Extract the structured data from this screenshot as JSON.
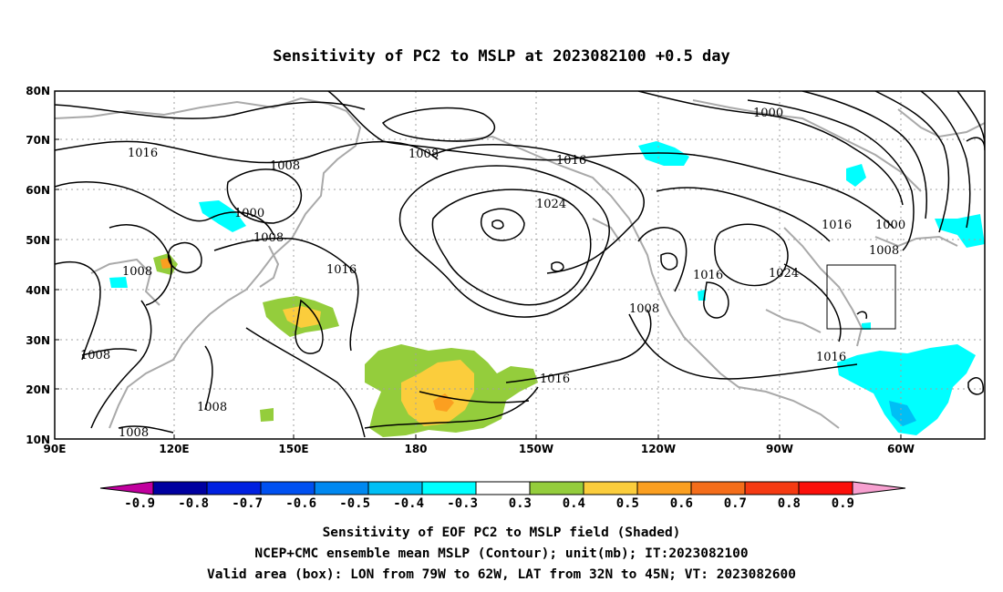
{
  "title": "Sensitivity of PC2 to MSLP at 2023082100 +0.5 day",
  "lat_ticks": [
    "80N",
    "70N",
    "60N",
    "50N",
    "40N",
    "30N",
    "20N",
    "10N"
  ],
  "lon_ticks": [
    "90E",
    "120E",
    "150E",
    "180",
    "150W",
    "120W",
    "90W",
    "60W"
  ],
  "contour_labels": [
    "1016",
    "1008",
    "1008",
    "1000",
    "1008",
    "1008",
    "1016",
    "1024",
    "1016",
    "1000",
    "1016",
    "1000",
    "1008",
    "1024",
    "1016",
    "1008",
    "1016",
    "1008",
    "1016",
    "1008",
    "1008"
  ],
  "colorbar": {
    "labels": [
      "-0.9",
      "-0.8",
      "-0.7",
      "-0.6",
      "-0.5",
      "-0.4",
      "-0.3",
      "0.3",
      "0.4",
      "0.5",
      "0.6",
      "0.7",
      "0.8",
      "0.9"
    ],
    "colors": [
      "#0000a0",
      "#0020e0",
      "#0050f0",
      "#0088f0",
      "#00bff5",
      "#00ffff",
      "#ffffff",
      "#94cd3c",
      "#fbcd3c",
      "#fb9f20",
      "#f46d1a",
      "#f53a12",
      "#fb0f0a"
    ],
    "under_color": "#c1009e",
    "over_color": "#f7a0d0"
  },
  "captions": [
    "Sensitivity of EOF PC2 to MSLP field (Shaded)",
    "NCEP+CMC ensemble mean MSLP (Contour); unit(mb); IT:2023082100",
    "Valid area (box): LON from 79W to 62W, LAT from 32N to 45N; VT: 2023082600"
  ],
  "colors": {
    "contour": "#000000",
    "coast": "#a9a9a9",
    "grid": "#a0a0a0"
  }
}
